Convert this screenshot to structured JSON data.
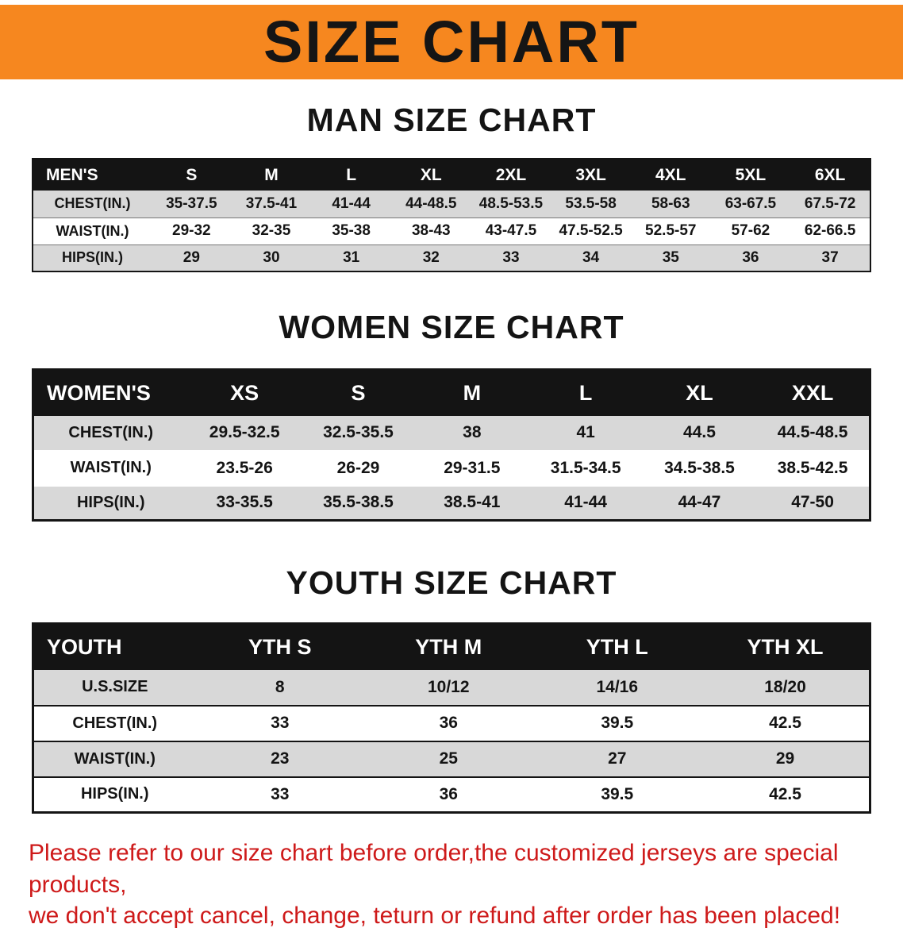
{
  "banner": {
    "title": "SIZE CHART"
  },
  "colors": {
    "banner_bg": "#F6871F",
    "header_bg": "#141414",
    "row_alt": "#D8D8D8",
    "disclaimer_red": "#CE1A1A"
  },
  "sections": [
    {
      "id": "men",
      "heading": "MAN SIZE CHART",
      "table": {
        "header": [
          "MEN'S",
          "S",
          "M",
          "L",
          "XL",
          "2XL",
          "3XL",
          "4XL",
          "5XL",
          "6XL"
        ],
        "rows": [
          [
            "CHEST(IN.)",
            "35-37.5",
            "37.5-41",
            "41-44",
            "44-48.5",
            "48.5-53.5",
            "53.5-58",
            "58-63",
            "63-67.5",
            "67.5-72"
          ],
          [
            "WAIST(IN.)",
            "29-32",
            "32-35",
            "35-38",
            "38-43",
            "43-47.5",
            "47.5-52.5",
            "52.5-57",
            "57-62",
            "62-66.5"
          ],
          [
            "HIPS(IN.)",
            "29",
            "30",
            "31",
            "32",
            "33",
            "34",
            "35",
            "36",
            "37"
          ]
        ]
      }
    },
    {
      "id": "women",
      "heading": "WOMEN SIZE CHART",
      "table": {
        "header": [
          "WOMEN'S",
          "XS",
          "S",
          "M",
          "L",
          "XL",
          "XXL"
        ],
        "rows": [
          [
            "CHEST(IN.)",
            "29.5-32.5",
            "32.5-35.5",
            "38",
            "41",
            "44.5",
            "44.5-48.5"
          ],
          [
            "WAIST(IN.)",
            "23.5-26",
            "26-29",
            "29-31.5",
            "31.5-34.5",
            "34.5-38.5",
            "38.5-42.5"
          ],
          [
            "HIPS(IN.)",
            "33-35.5",
            "35.5-38.5",
            "38.5-41",
            "41-44",
            "44-47",
            "47-50"
          ]
        ]
      }
    },
    {
      "id": "youth",
      "heading": "YOUTH SIZE CHART",
      "table": {
        "header": [
          "YOUTH",
          "YTH S",
          "YTH M",
          "YTH L",
          "YTH XL"
        ],
        "rows": [
          [
            "U.S.SIZE",
            "8",
            "10/12",
            "14/16",
            "18/20"
          ],
          [
            "CHEST(IN.)",
            "33",
            "36",
            "39.5",
            "42.5"
          ],
          [
            "WAIST(IN.)",
            "23",
            "25",
            "27",
            "29"
          ],
          [
            "HIPS(IN.)",
            "33",
            "36",
            "39.5",
            "42.5"
          ]
        ]
      }
    }
  ],
  "disclaimer": {
    "line1": "Please refer to our size chart before order,the customized jerseys are special products,",
    "line2": "we don't accept cancel, change, teturn or refund after order has been placed!"
  }
}
